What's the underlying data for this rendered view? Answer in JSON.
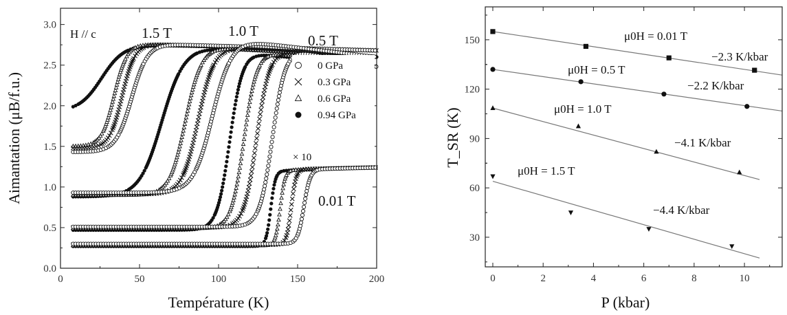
{
  "chart_data": [
    {
      "type": "scatter",
      "panel": "left",
      "xlabel": "Température (K)",
      "ylabel": "Aimantation (μB/f.u.)",
      "xlim": [
        0,
        200
      ],
      "ylim": [
        0.0,
        3.2
      ],
      "xticks": [
        "0",
        "50",
        "100",
        "150",
        "200"
      ],
      "yticks": [
        "0.0",
        "0.5",
        "1.0",
        "1.5",
        "2.0",
        "2.5",
        "3.0"
      ],
      "annotations": {
        "field_direction": "H // c",
        "field_1_5": "1.5 T",
        "field_1_0": "1.0 T",
        "field_0_5": "0.5 T",
        "field_0_01": "0.01 T",
        "scale_note": "× 10"
      },
      "legend": [
        {
          "label": "0 GPa",
          "marker": "open-circle"
        },
        {
          "label": "0.3 GPa",
          "marker": "cross"
        },
        {
          "label": "0.6 GPa",
          "marker": "open-triangle"
        },
        {
          "label": "0.94 GPa",
          "marker": "filled-circle"
        }
      ],
      "series": [
        {
          "field": "1.5 T",
          "pressure": "0.94 GPa",
          "marker": "filled-circle",
          "low": 1.93,
          "high": 2.75,
          "t_transition": 26,
          "width": 7,
          "plateau_end": 2.68
        },
        {
          "field": "1.5 T",
          "pressure": "0.6 GPa",
          "marker": "open-triangle",
          "low": 1.5,
          "high": 2.76,
          "t_transition": 34,
          "width": 4,
          "plateau_end": 2.68
        },
        {
          "field": "1.5 T",
          "pressure": "0.3 GPa",
          "marker": "cross",
          "low": 1.48,
          "high": 2.76,
          "t_transition": 39,
          "width": 4,
          "plateau_end": 2.68
        },
        {
          "field": "1.5 T",
          "pressure": "0 GPa",
          "marker": "open-circle",
          "low": 1.43,
          "high": 2.76,
          "t_transition": 45,
          "width": 5,
          "plateau_end": 2.68
        },
        {
          "field": "1.0 T",
          "pressure": "0.94 GPa",
          "marker": "filled-circle",
          "low": 0.88,
          "high": 2.72,
          "t_transition": 64,
          "width": 7,
          "plateau_end": 2.6
        },
        {
          "field": "1.0 T",
          "pressure": "0.6 GPa",
          "marker": "open-triangle",
          "low": 0.9,
          "high": 2.72,
          "t_transition": 79,
          "width": 5,
          "plateau_end": 2.6
        },
        {
          "field": "1.0 T",
          "pressure": "0.3 GPa",
          "marker": "cross",
          "low": 0.91,
          "high": 2.72,
          "t_transition": 87,
          "width": 5,
          "plateau_end": 2.6
        },
        {
          "field": "1.0 T",
          "pressure": "0 GPa",
          "marker": "open-circle",
          "low": 0.93,
          "high": 2.8,
          "t_transition": 96,
          "width": 6,
          "plateau_end": 2.6
        },
        {
          "field": "0.5 T",
          "pressure": "0.94 GPa",
          "marker": "filled-circle",
          "low": 0.47,
          "high": 2.65,
          "t_transition": 107,
          "width": 4,
          "plateau_end": 2.48
        },
        {
          "field": "0.5 T",
          "pressure": "0.6 GPa",
          "marker": "open-triangle",
          "low": 0.49,
          "high": 2.66,
          "t_transition": 116,
          "width": 4,
          "plateau_end": 2.48
        },
        {
          "field": "0.5 T",
          "pressure": "0.3 GPa",
          "marker": "cross",
          "low": 0.5,
          "high": 2.67,
          "t_transition": 124,
          "width": 4,
          "plateau_end": 2.48
        },
        {
          "field": "0.5 T",
          "pressure": "0 GPa",
          "marker": "open-circle",
          "low": 0.51,
          "high": 2.68,
          "t_transition": 134,
          "width": 4,
          "plateau_end": 2.48
        },
        {
          "field": "0.01 T",
          "pressure": "0.94 GPa",
          "marker": "filled-circle",
          "low": 0.27,
          "high": 1.2,
          "t_transition": 133,
          "width": 1.5,
          "plateau_end": 1.24
        },
        {
          "field": "0.01 T",
          "pressure": "0.6 GPa",
          "marker": "open-triangle",
          "low": 0.28,
          "high": 1.21,
          "t_transition": 139,
          "width": 1.5,
          "plateau_end": 1.24
        },
        {
          "field": "0.01 T",
          "pressure": "0.3 GPa",
          "marker": "cross",
          "low": 0.29,
          "high": 1.22,
          "t_transition": 146,
          "width": 1.5,
          "plateau_end": 1.24
        },
        {
          "field": "0.01 T",
          "pressure": "0 GPa",
          "marker": "open-circle",
          "low": 0.3,
          "high": 1.22,
          "t_transition": 154,
          "width": 2,
          "plateau_end": 1.24
        }
      ]
    },
    {
      "type": "scatter",
      "panel": "right",
      "xlabel": "P (kbar)",
      "ylabel": "T_SR (K)",
      "xlim": [
        -0.3,
        11.5
      ],
      "ylim": [
        12,
        170
      ],
      "xticks": [
        "0",
        "2",
        "4",
        "6",
        "8",
        "10"
      ],
      "yticks": [
        "30",
        "60",
        "90",
        "120",
        "150"
      ],
      "series": [
        {
          "name": "μ0H = 0.01 T",
          "marker": "square",
          "points": [
            [
              0,
              155
            ],
            [
              3.7,
              146
            ],
            [
              7.0,
              139
            ],
            [
              10.4,
              131.5
            ]
          ],
          "fit": {
            "intercept": 155,
            "slope": -2.3,
            "xmax": 11.5
          },
          "slope_label": "−2.3 K/kbar"
        },
        {
          "name": "μ0H = 0.5 T",
          "marker": "circle",
          "points": [
            [
              0,
              132
            ],
            [
              3.5,
              124.5
            ],
            [
              6.8,
              117
            ],
            [
              10.1,
              109.5
            ]
          ],
          "fit": {
            "intercept": 132,
            "slope": -2.2,
            "xmax": 11.5
          },
          "slope_label": "−2.2 K/kbar"
        },
        {
          "name": "μ0H = 1.0 T",
          "marker": "triangle-up",
          "points": [
            [
              0,
              108.5
            ],
            [
              3.4,
              97.5
            ],
            [
              6.5,
              82
            ],
            [
              9.8,
              69.5
            ]
          ],
          "fit": {
            "intercept": 108.5,
            "slope": -4.1,
            "xmax": 10.6
          },
          "slope_label": "−4.1 K/kbar"
        },
        {
          "name": "μ0H = 1.5 T",
          "marker": "triangle-down",
          "points": [
            [
              0,
              67
            ],
            [
              3.1,
              45
            ],
            [
              6.2,
              35
            ],
            [
              9.5,
              24.5
            ]
          ],
          "fit": {
            "intercept": 64,
            "slope": -4.4,
            "xmax": 10.6
          },
          "slope_label": "−4.4 K/kbar"
        }
      ]
    }
  ]
}
